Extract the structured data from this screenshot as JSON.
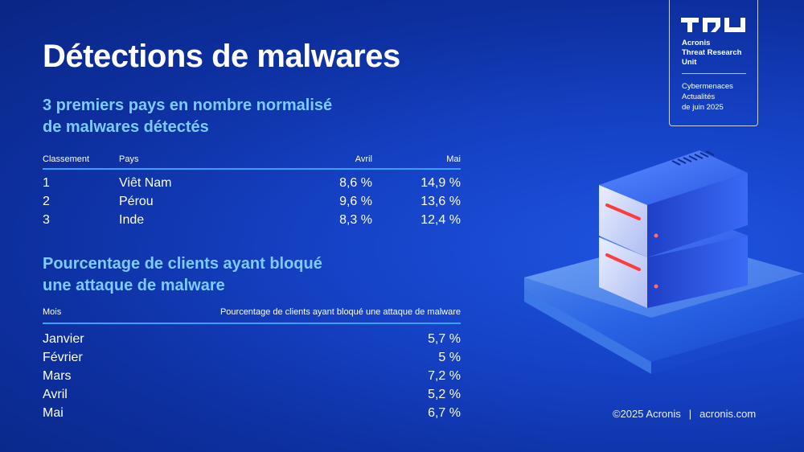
{
  "title": "Détections de malwares",
  "badge": {
    "org_lines": [
      "Acronis",
      "Threat Research",
      "Unit"
    ],
    "issue_lines": [
      "Cybermenaces",
      "Actualités",
      "de juin 2025"
    ]
  },
  "section1": {
    "title_lines": [
      "3 premiers pays en nombre normalisé",
      "de malwares détectés"
    ],
    "headers": [
      "Classement",
      "Pays",
      "Avril",
      "Mai"
    ],
    "rows": [
      [
        "1",
        "Viêt Nam",
        "8,6 %",
        "14,9 %"
      ],
      [
        "2",
        "Pérou",
        "9,6 %",
        "13,6 %"
      ],
      [
        "3",
        "Inde",
        "8,3 %",
        "12,4 %"
      ]
    ]
  },
  "section2": {
    "title_lines": [
      "Pourcentage de clients ayant bloqué",
      "une attaque de malware"
    ],
    "headers": [
      "Mois",
      "Pourcentage de clients ayant bloqué une attaque de malware"
    ],
    "rows": [
      [
        "Janvier",
        "5,7 %"
      ],
      [
        "Février",
        "5 %"
      ],
      [
        "Mars",
        "7,2 %"
      ],
      [
        "Avril",
        "5,2 %"
      ],
      [
        "Mai",
        "6,7 %"
      ]
    ]
  },
  "footer": {
    "copyright": "©2025 Acronis",
    "separator": "|",
    "website": "acronis.com"
  },
  "colors": {
    "background": "#1542c6",
    "accent_heading": "#7ecbff",
    "rule": "#3aa0ff",
    "server_light": "#ff3b3b"
  },
  "icons": [
    "acronis-tru-logo",
    "server-stack-illustration"
  ]
}
